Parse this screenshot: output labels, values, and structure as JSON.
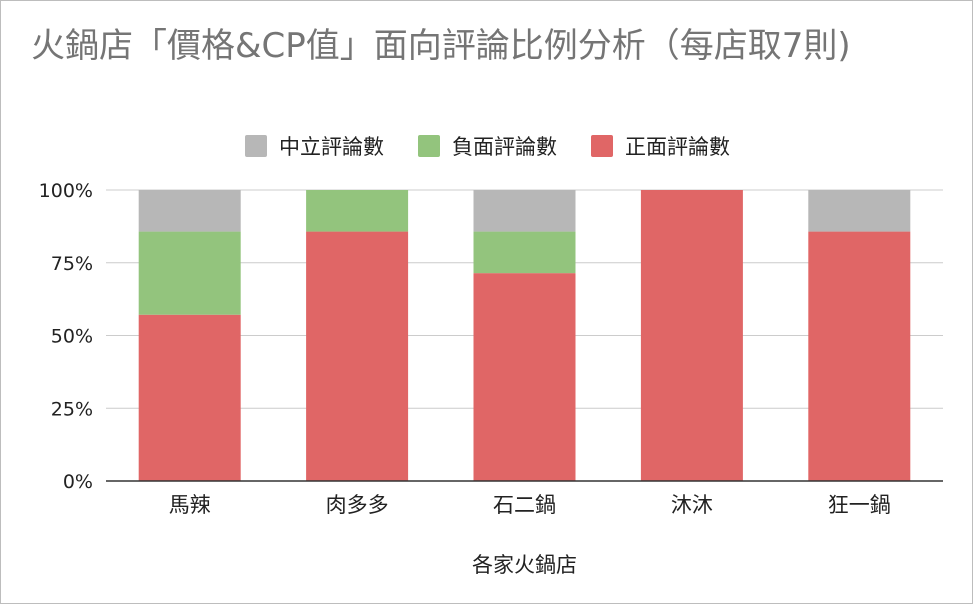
{
  "chart_data": {
    "type": "bar",
    "stacked": true,
    "normalized": true,
    "title": "火鍋店「價格&CP值」面向評論比例分析（每店取7則)",
    "xlabel": "各家火鍋店",
    "ylabel": "",
    "categories": [
      "馬辣",
      "肉多多",
      "石二鍋",
      "沐沐",
      "狂一鍋"
    ],
    "series": [
      {
        "name": "正面評論數",
        "color": "#e06666",
        "values": [
          4,
          6,
          5,
          7,
          6
        ]
      },
      {
        "name": "負面評論數",
        "color": "#93c47d",
        "values": [
          2,
          1,
          1,
          0,
          0
        ]
      },
      {
        "name": "中立評論數",
        "color": "#b7b7b7",
        "values": [
          1,
          0,
          1,
          0,
          1
        ]
      }
    ],
    "legend_order": [
      "中立評論數",
      "負面評論數",
      "正面評論數"
    ],
    "y_ticks": [
      "0%",
      "25%",
      "50%",
      "75%",
      "100%"
    ],
    "ylim": [
      0,
      1
    ],
    "grid": true,
    "legend_position": "top"
  }
}
